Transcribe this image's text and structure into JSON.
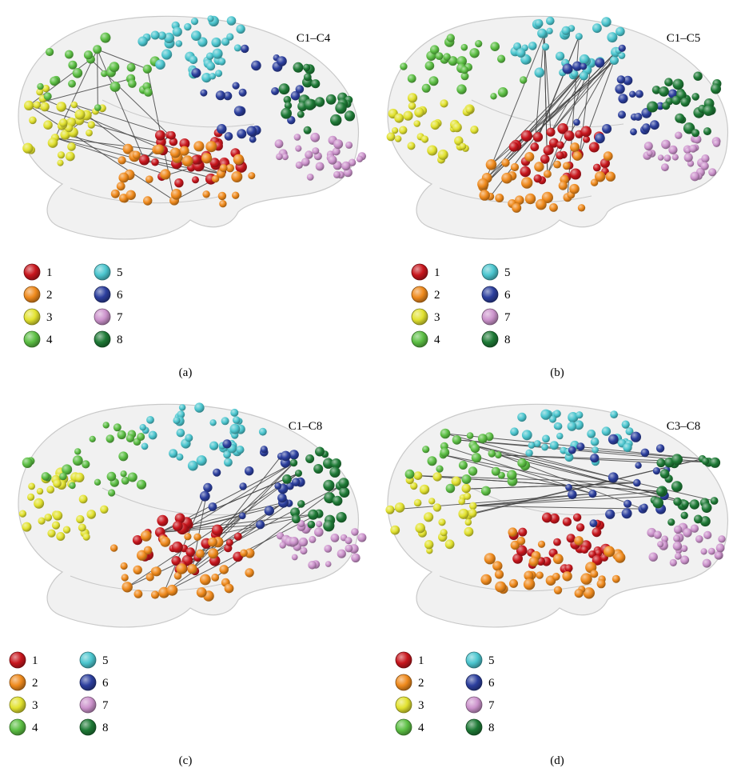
{
  "panels": [
    {
      "id": "a",
      "title": "C1–C4",
      "caption": "(a)",
      "connect": {
        "from": [
          1,
          2,
          3,
          4
        ],
        "to": [
          1,
          2,
          3,
          4
        ]
      }
    },
    {
      "id": "b",
      "title": "C1–C5",
      "caption": "(b)",
      "connect": {
        "from": [
          1,
          2
        ],
        "to": [
          5
        ]
      }
    },
    {
      "id": "c",
      "title": "C1–C8",
      "caption": "(c)",
      "connect": {
        "from": [
          1,
          2
        ],
        "to": [
          8,
          6
        ]
      }
    },
    {
      "id": "d",
      "title": "C3–C8",
      "caption": "(d)",
      "connect": {
        "from": [
          3,
          4
        ],
        "to": [
          8,
          6
        ]
      }
    }
  ],
  "legend": {
    "items": [
      {
        "label": "1",
        "color": "#c8161d"
      },
      {
        "label": "2",
        "color": "#ef8a1d"
      },
      {
        "label": "3",
        "color": "#e2e230"
      },
      {
        "label": "4",
        "color": "#5cbf44"
      },
      {
        "label": "5",
        "color": "#4cc6cf"
      },
      {
        "label": "6",
        "color": "#2c3f9e"
      },
      {
        "label": "7",
        "color": "#cc93cc"
      },
      {
        "label": "8",
        "color": "#1e7a36"
      }
    ]
  },
  "colors": {
    "brain_fill": "#e7e7e7",
    "brain_stroke": "#c9c9c9",
    "connection_line": "#444444"
  }
}
